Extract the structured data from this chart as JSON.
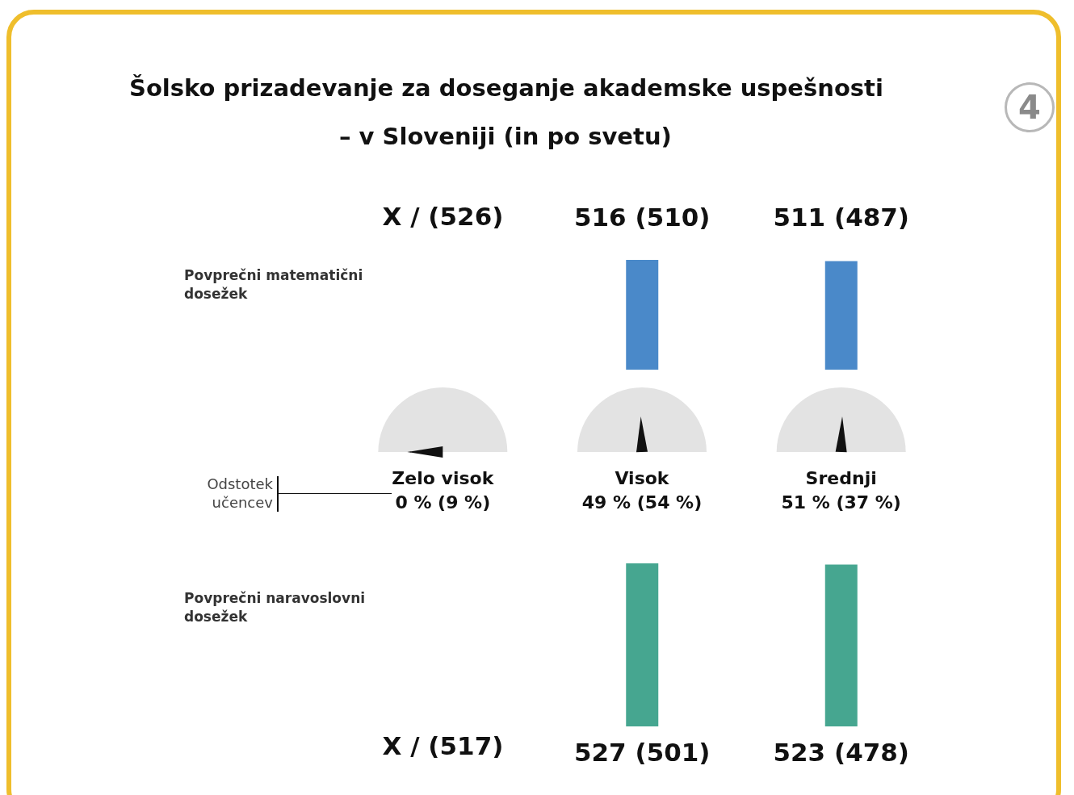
{
  "chart_data": [
    {
      "type": "bar",
      "title": "Šolsko prizadevanje za doseganje akademske uspešnosti",
      "subtitle": "– v Sloveniji (in po svetu)",
      "annotations": [
        "4",
        "X / (526)"
      ],
      "ylabel": "Povprečni matematični dosežek",
      "categories": [
        null,
        null
      ],
      "values": [
        516,
        511
      ],
      "value_labels": [
        "516 (510)",
        "511 (487)"
      ],
      "color": "#4a89c9",
      "grid": false
    },
    {
      "type": "other",
      "ylabel": "Odstotek učencev",
      "categories": [
        "Zelo visok",
        "Visok",
        "Srednji"
      ],
      "values": [
        0,
        49,
        51
      ],
      "value_labels": [
        "0 % (9 %)",
        "49 % (54 %)",
        "51 % (37 %)"
      ],
      "color": "#e3e3e3"
    },
    {
      "type": "bar",
      "annotations": [
        "X / (517)"
      ],
      "ylabel": "Povprečni naravoslovni dosežek",
      "categories": [
        null,
        null
      ],
      "values": [
        527,
        523
      ],
      "value_labels": [
        "527 (501)",
        "523 (478)"
      ],
      "color": "#46a690",
      "grid": false
    }
  ]
}
